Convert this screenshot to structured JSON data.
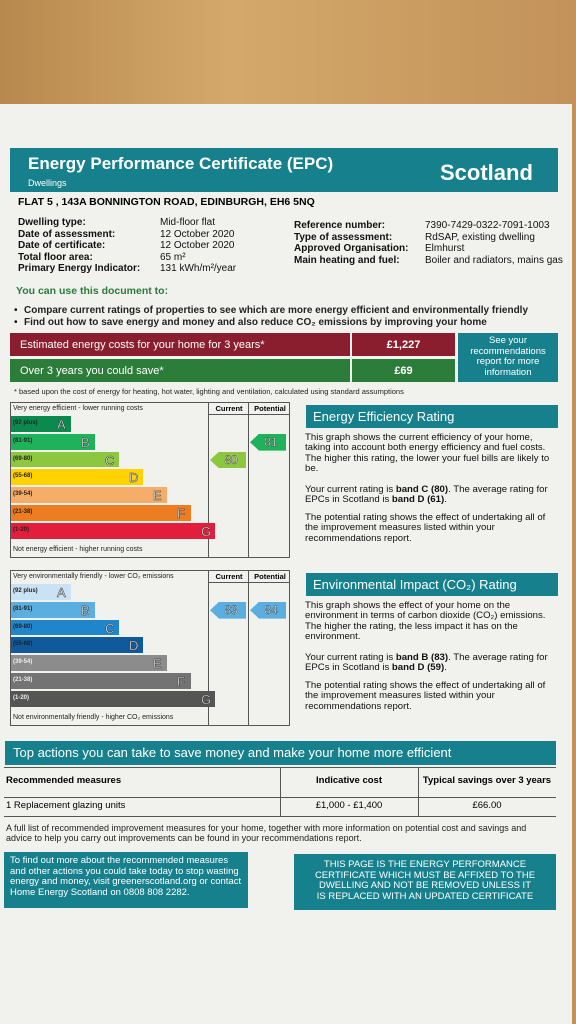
{
  "header": {
    "title": "Energy Performance Certificate (EPC)",
    "subtitle": "Dwellings",
    "region": "Scotland"
  },
  "address": "FLAT 5 , 143A BONNINGTON ROAD, EDINBURGH, EH6 5NQ",
  "details_left": [
    {
      "label": "Dwelling type:",
      "value": "Mid-floor flat"
    },
    {
      "label": "Date of assessment:",
      "value": "12 October 2020"
    },
    {
      "label": "Date of certificate:",
      "value": "12 October 2020"
    },
    {
      "label": "Total floor area:",
      "value": "65 m²"
    },
    {
      "label": "Primary Energy Indicator:",
      "value": "131 kWh/m²/year"
    }
  ],
  "details_right": [
    {
      "label": "Reference number:",
      "value": "7390-7429-0322-7091-1003"
    },
    {
      "label": "Type of assessment:",
      "value": "RdSAP, existing dwelling"
    },
    {
      "label": "Approved Organisation:",
      "value": "Elmhurst"
    },
    {
      "label": "Main heating and fuel:",
      "value": "Boiler and radiators, mains gas"
    }
  ],
  "use_heading": "You can use this document to:",
  "use_items": [
    "Compare current ratings of properties to see which are more energy efficient and environmentally friendly",
    "Find out how to save energy and money and also reduce CO₂ emissions by improving your home"
  ],
  "costs": [
    {
      "label": "Estimated energy costs for your home for 3 years*",
      "value": "£1,227"
    },
    {
      "label": "Over 3 years you could save*",
      "value": "£69"
    }
  ],
  "see_recommendations": "See your recommendations report for more information",
  "footnote": "* based upon the cost of energy for heating, hot water, lighting and ventilation, calculated using standard assumptions",
  "energy_chart": {
    "top_label": "Very energy efficient - lower running costs",
    "bottom_label": "Not energy efficient - higher running costs",
    "columns": [
      "Current",
      "Potential"
    ],
    "bands": [
      {
        "range": "(92 plus)",
        "letter": "A",
        "color": "#0a8a4f"
      },
      {
        "range": "(81-91)",
        "letter": "B",
        "color": "#1fb25a"
      },
      {
        "range": "(69-80)",
        "letter": "C",
        "color": "#8dc63f"
      },
      {
        "range": "(55-68)",
        "letter": "D",
        "color": "#ffd200"
      },
      {
        "range": "(39-54)",
        "letter": "E",
        "color": "#f7ad6a"
      },
      {
        "range": "(21-38)",
        "letter": "F",
        "color": "#ee7d22"
      },
      {
        "range": "(1-20)",
        "letter": "G",
        "color": "#e31d3c"
      }
    ],
    "current": 80,
    "potential": 81
  },
  "energy_panel": {
    "heading": "Energy Efficiency Rating",
    "paragraphs": [
      [
        "This graph shows the current efficiency of your home, taking into account both energy efficiency and fuel costs. The higher this rating, the lower your fuel bills are likely to be."
      ],
      [
        "Your current rating is ",
        "band C (80)",
        ". The average rating for EPCs in Scotland is ",
        "band D (61)",
        "."
      ],
      [
        "The potential rating shows the effect of undertaking all of the improvement measures listed within your recommendations report."
      ]
    ]
  },
  "environment_chart": {
    "top_label": "Very environmentally friendly - lower CO₂ emissions",
    "bottom_label": "Not environmentally friendly - higher CO₂ emissions",
    "columns": [
      "Current",
      "Potential"
    ],
    "bands": [
      {
        "range": "(92 plus)",
        "letter": "A",
        "color": "#c9e3f4"
      },
      {
        "range": "(81-91)",
        "letter": "B",
        "color": "#5aaee0"
      },
      {
        "range": "(69-80)",
        "letter": "C",
        "color": "#1f86cc"
      },
      {
        "range": "(55-68)",
        "letter": "D",
        "color": "#105a9c"
      },
      {
        "range": "(39-54)",
        "letter": "E",
        "color": "#8c8c8c"
      },
      {
        "range": "(21-38)",
        "letter": "F",
        "color": "#737373"
      },
      {
        "range": "(1-20)",
        "letter": "G",
        "color": "#555555"
      }
    ],
    "current": 83,
    "potential": 84
  },
  "environment_panel": {
    "heading": "Environmental Impact (CO₂) Rating",
    "paragraphs": [
      [
        "This graph shows the effect of your home on the environment in terms of carbon dioxide (CO₂) emissions. The higher the rating, the less impact it has on the environment."
      ],
      [
        "Your current rating is ",
        "band B (83)",
        ". The average rating for EPCs in Scotland is ",
        "band D (59)",
        "."
      ],
      [
        "The potential rating shows the effect of undertaking all of the improvement measures listed within your recommendations report."
      ]
    ]
  },
  "actions": {
    "heading": "Top actions you can take to save money and make your home more efficient",
    "columns": [
      "Recommended measures",
      "Indicative cost",
      "Typical savings over 3 years"
    ],
    "rows": [
      [
        "1 Replacement glazing units",
        "£1,000 - £1,400",
        "£66.00"
      ]
    ]
  },
  "full_list": "A full list of recommended improvement measures for your home, together with more information on potential cost and savings and advice to help you carry out improvements can be found in your recommendations report.",
  "find_out": "To find out more about the recommended measures and other actions you could take today to stop wasting energy and money, visit greenerscotland.org or contact Home Energy Scotland on 0808 808 2282.",
  "notice": "THIS PAGE IS THE ENERGY PERFORMANCE CERTIFICATE WHICH MUST BE AFFIXED TO THE DWELLING AND NOT BE REMOVED UNLESS IT IS REPLACED WITH AN UPDATED CERTIFICATE"
}
